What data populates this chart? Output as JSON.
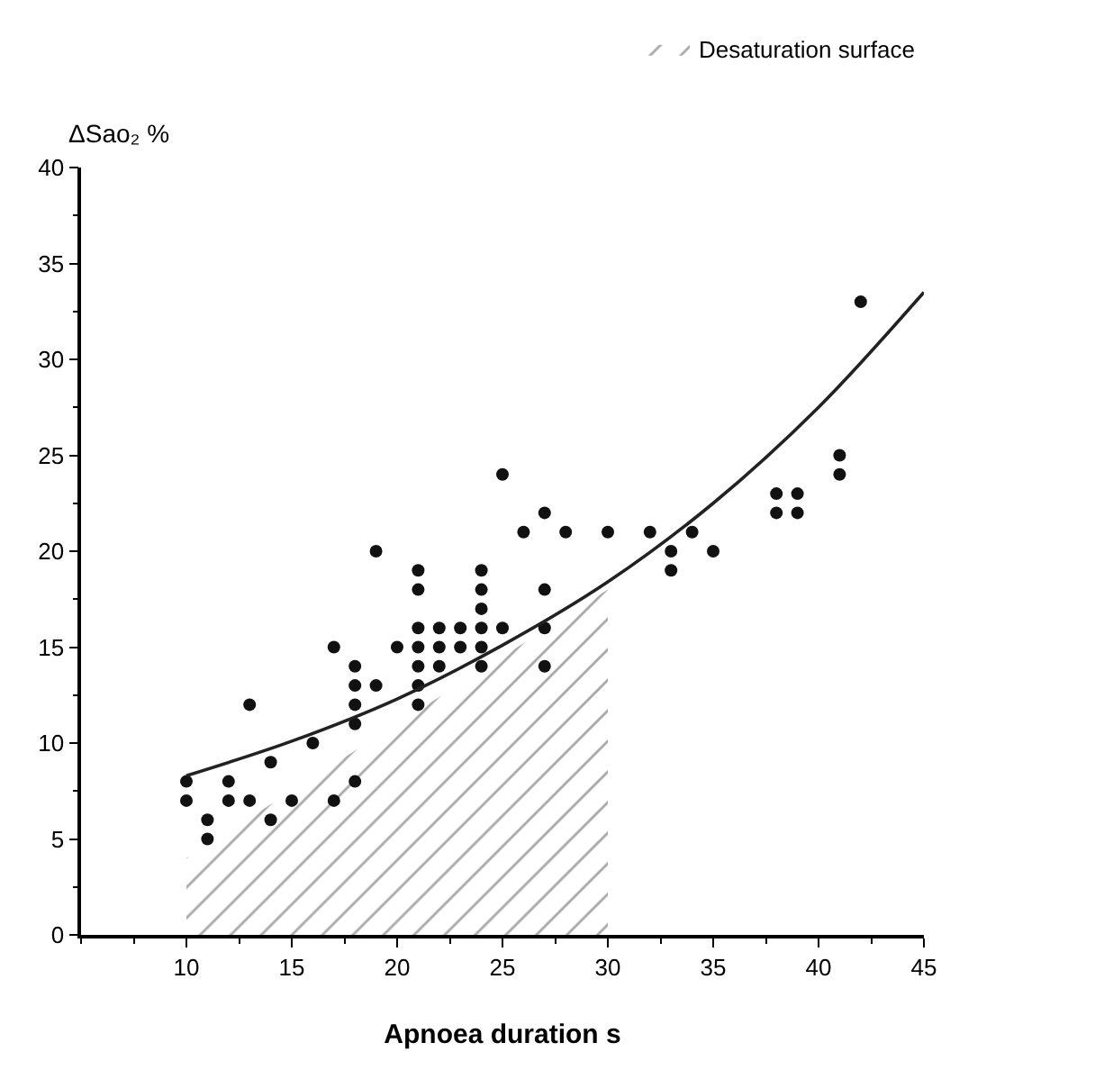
{
  "chart_data": {
    "type": "scatter",
    "xlabel": "Apnoea duration s",
    "ylabel": "ΔSao₂ %",
    "xlim": [
      5,
      45
    ],
    "xticks": [
      10,
      15,
      20,
      25,
      30,
      35,
      40,
      45
    ],
    "ylim": [
      0,
      40
    ],
    "yticks": [
      0,
      5,
      10,
      15,
      20,
      25,
      30,
      35,
      40
    ],
    "legend": "top right",
    "series": [
      {
        "type": "area",
        "name": "Desaturation surface",
        "color": "#555555",
        "x": [
          10,
          30
        ],
        "values": [
          4,
          18
        ]
      },
      {
        "marker": "circle",
        "color": "#111111",
        "x": [
          10,
          10,
          11,
          11,
          12,
          12,
          13,
          13,
          14,
          14,
          15,
          16,
          17,
          17,
          18,
          18,
          18,
          18,
          18,
          19,
          19,
          20,
          21,
          21,
          21,
          21,
          21,
          21,
          21,
          22,
          22,
          22,
          23,
          23,
          24,
          24,
          24,
          24,
          24,
          24,
          25,
          25,
          26,
          27,
          27,
          27,
          27,
          28,
          30,
          32,
          33,
          33,
          34,
          35,
          38,
          38,
          39,
          39,
          41,
          41,
          42
        ],
        "values": [
          8,
          7,
          6,
          5,
          8,
          7,
          12,
          7,
          9,
          6,
          7,
          10,
          15,
          7,
          14,
          13,
          12,
          11,
          8,
          20,
          13,
          15,
          19,
          18,
          16,
          15,
          14,
          13,
          12,
          16,
          15,
          14,
          16,
          15,
          19,
          18,
          17,
          16,
          15,
          14,
          24,
          16,
          21,
          22,
          18,
          16,
          14,
          21,
          21,
          21,
          20,
          19,
          21,
          20,
          23,
          22,
          23,
          22,
          25,
          24,
          33
        ]
      },
      {
        "type": "line",
        "color": "#222222",
        "x": [
          10,
          15,
          20,
          25,
          30,
          35,
          40,
          45
        ],
        "values": [
          8.3,
          10.1,
          12.3,
          15.1,
          18.4,
          22.5,
          27.5,
          33.5
        ]
      }
    ]
  }
}
